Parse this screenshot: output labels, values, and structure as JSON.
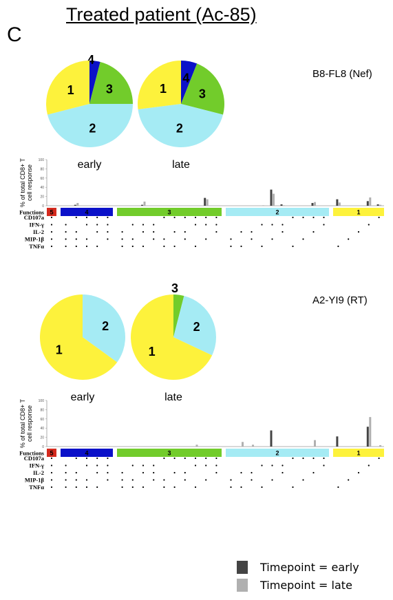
{
  "title": "Treated patient (Ac-85)",
  "panel_letter": "C",
  "colors": {
    "early": "#444444",
    "late": "#b0b0b0",
    "group5": "#d42a1e",
    "group4": "#0b11c9",
    "group3": "#72cc2b",
    "group2": "#a5ebf4",
    "group1": "#fdf23c"
  },
  "legend": {
    "early": "Timepoint = early",
    "late": "Timepoint = late"
  },
  "row_labels": [
    "Functions",
    "CD107a",
    "IFN-γ",
    "IL-2",
    "MIP-1β",
    "TNFα"
  ],
  "function_groups": [
    {
      "label": "5",
      "count": 1
    },
    {
      "label": "4",
      "count": 5
    },
    {
      "label": "3",
      "count": 10
    },
    {
      "label": "2",
      "count": 10
    },
    {
      "label": "1",
      "count": 5
    }
  ],
  "dot_pattern": [
    [
      1,
      1,
      1,
      1,
      1
    ],
    [
      0,
      1,
      1,
      1,
      1
    ],
    [
      1,
      0,
      1,
      1,
      1
    ],
    [
      1,
      1,
      0,
      1,
      1
    ],
    [
      1,
      1,
      1,
      0,
      1
    ],
    [
      1,
      1,
      1,
      1,
      0
    ],
    [
      0,
      0,
      1,
      1,
      1
    ],
    [
      0,
      1,
      0,
      1,
      1
    ],
    [
      0,
      1,
      1,
      0,
      1
    ],
    [
      0,
      1,
      1,
      1,
      0
    ],
    [
      1,
      0,
      0,
      1,
      1
    ],
    [
      1,
      0,
      1,
      0,
      1
    ],
    [
      1,
      0,
      1,
      1,
      0
    ],
    [
      1,
      1,
      0,
      0,
      1
    ],
    [
      1,
      1,
      0,
      1,
      0
    ],
    [
      1,
      1,
      1,
      0,
      0
    ],
    [
      0,
      0,
      0,
      1,
      1
    ],
    [
      0,
      0,
      1,
      0,
      1
    ],
    [
      0,
      0,
      1,
      1,
      0
    ],
    [
      0,
      1,
      0,
      0,
      1
    ],
    [
      0,
      1,
      0,
      1,
      0
    ],
    [
      0,
      1,
      1,
      0,
      0
    ],
    [
      1,
      0,
      0,
      0,
      1
    ],
    [
      1,
      0,
      0,
      1,
      0
    ],
    [
      1,
      0,
      1,
      0,
      0
    ],
    [
      1,
      1,
      0,
      0,
      0
    ],
    [
      0,
      0,
      0,
      0,
      1
    ],
    [
      0,
      0,
      0,
      1,
      0
    ],
    [
      0,
      0,
      1,
      0,
      0
    ],
    [
      0,
      1,
      0,
      0,
      0
    ],
    [
      1,
      0,
      0,
      0,
      0
    ]
  ],
  "chart_data": [
    {
      "type": "pie",
      "epitope": "B8-FL8 (Nef)",
      "timepoint": "early",
      "labels": [
        "4",
        "3",
        "2",
        "1"
      ],
      "values": [
        4,
        21,
        46,
        29
      ],
      "colors": [
        "#0b11c9",
        "#72cc2b",
        "#a5ebf4",
        "#fdf23c"
      ]
    },
    {
      "type": "pie",
      "epitope": "B8-FL8 (Nef)",
      "timepoint": "late",
      "labels": [
        "4",
        "3",
        "2",
        "1"
      ],
      "values": [
        6,
        23,
        44,
        27
      ],
      "colors": [
        "#0b11c9",
        "#72cc2b",
        "#a5ebf4",
        "#fdf23c"
      ]
    },
    {
      "type": "bar",
      "epitope": "B8-FL8 (Nef)",
      "ylabel": "% of total CD8+ T cell response",
      "ylim": [
        0,
        100
      ],
      "yticks": [
        0,
        20,
        40,
        60,
        80,
        100
      ],
      "series": [
        {
          "name": "Timepoint = early",
          "values": [
            0,
            0,
            2,
            0,
            0,
            0,
            0,
            0,
            2,
            0,
            0,
            0,
            0,
            0,
            17,
            0,
            0,
            0,
            0,
            0,
            35,
            3,
            0,
            0,
            6,
            0,
            14,
            0,
            0,
            10,
            3
          ]
        },
        {
          "name": "Timepoint = late",
          "values": [
            0,
            0,
            6,
            0,
            0,
            0,
            0,
            0,
            9,
            0,
            0,
            0,
            0,
            0,
            14,
            0,
            0,
            0,
            0,
            1,
            26,
            1,
            0,
            0,
            8,
            0,
            7,
            0,
            0,
            18,
            2
          ]
        }
      ]
    },
    {
      "type": "pie",
      "epitope": "A2-YI9 (RT)",
      "timepoint": "early",
      "labels": [
        "2",
        "1"
      ],
      "values": [
        35,
        65
      ],
      "colors": [
        "#a5ebf4",
        "#fdf23c"
      ]
    },
    {
      "type": "pie",
      "epitope": "A2-YI9 (RT)",
      "timepoint": "late",
      "labels": [
        "3",
        "2",
        "1"
      ],
      "values": [
        4,
        28,
        68
      ],
      "colors": [
        "#72cc2b",
        "#a5ebf4",
        "#fdf23c"
      ]
    },
    {
      "type": "bar",
      "epitope": "A2-YI9 (RT)",
      "ylabel": "% of total CD8+ T cell response",
      "ylim": [
        0,
        100
      ],
      "yticks": [
        0,
        20,
        40,
        60,
        80,
        100
      ],
      "series": [
        {
          "name": "Timepoint = early",
          "values": [
            0,
            0,
            0,
            0,
            0,
            0,
            0,
            0,
            0,
            0,
            0,
            0,
            0,
            0,
            0,
            0,
            0,
            0,
            0,
            0,
            35,
            0,
            0,
            0,
            0,
            0,
            22,
            0,
            0,
            43,
            0
          ]
        },
        {
          "name": "Timepoint = late",
          "values": [
            0,
            0,
            0,
            0,
            0,
            0,
            0,
            0,
            0,
            0,
            0,
            0,
            0,
            4,
            0,
            0,
            0,
            10,
            4,
            0,
            0,
            0,
            0,
            0,
            14,
            0,
            0,
            0,
            0,
            64,
            3
          ]
        }
      ]
    }
  ],
  "timepoint_labels": [
    "early",
    "late"
  ]
}
